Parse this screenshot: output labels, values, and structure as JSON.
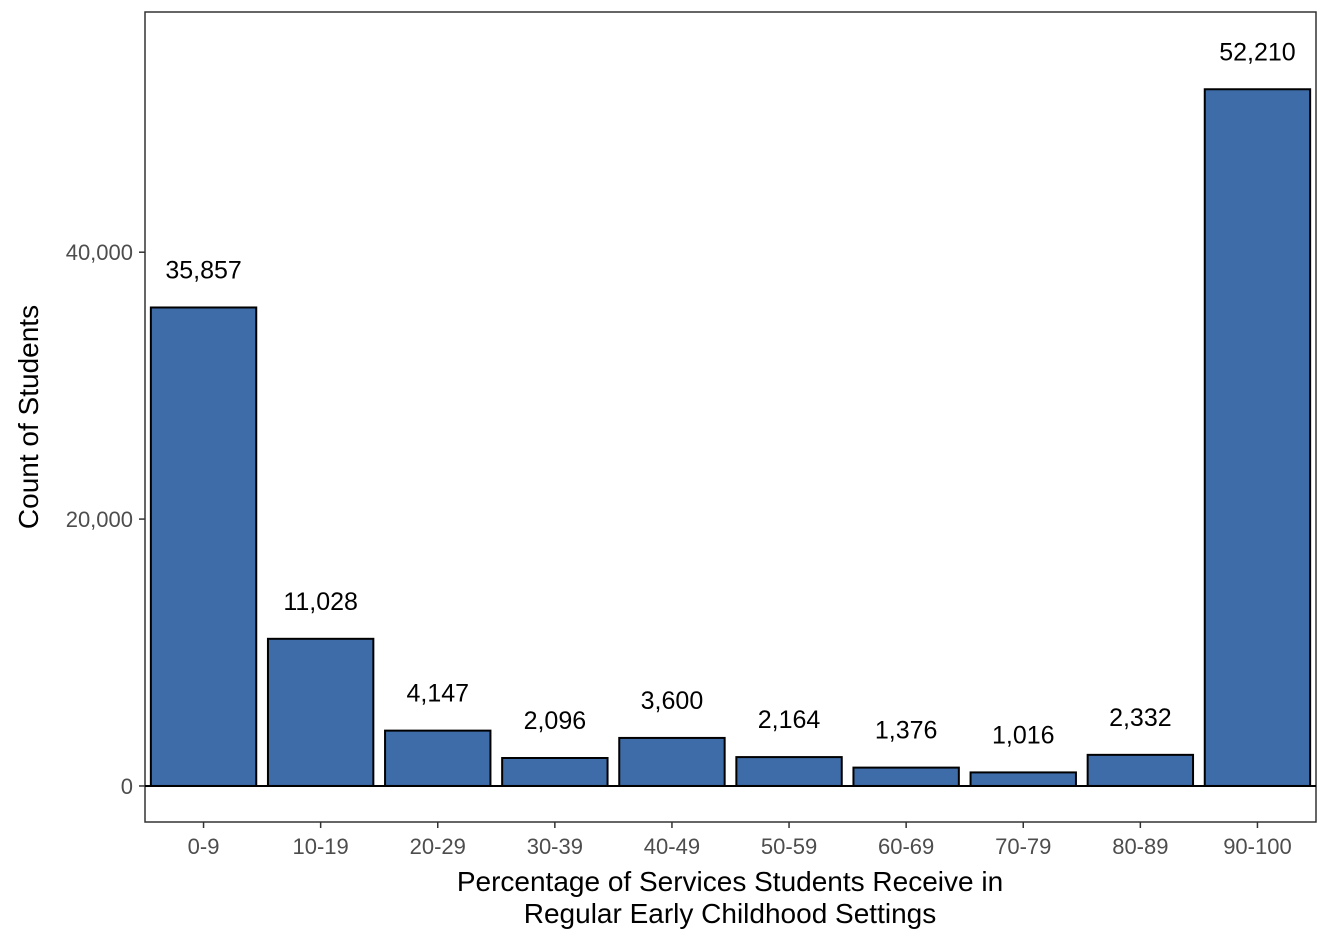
{
  "chart_data": {
    "type": "bar",
    "categories": [
      "0-9",
      "10-19",
      "20-29",
      "30-39",
      "40-49",
      "50-59",
      "60-69",
      "70-79",
      "80-89",
      "90-100"
    ],
    "values": [
      35857,
      11028,
      4147,
      2096,
      3600,
      2164,
      1376,
      1016,
      2332,
      52210
    ],
    "data_labels": [
      "35,857",
      "11,028",
      "4,147",
      "2,096",
      "3,600",
      "2,164",
      "1,376",
      "1,016",
      "2,332",
      "52,210"
    ],
    "title": "",
    "xlabel_lines": [
      "Percentage of Services Students Receive in",
      "Regular Early Childhood Settings"
    ],
    "ylabel": "Count of Students",
    "y_ticks": [
      0,
      20000,
      40000
    ],
    "y_tick_labels": [
      "0",
      "20,000",
      "40,000"
    ],
    "ylim": [
      -2700,
      58000
    ],
    "grid": false,
    "legend": "none",
    "colors": {
      "bar_fill": "#3d6ca8",
      "bar_stroke": "#000000",
      "panel_border": "#333333",
      "tick_label": "#4d4d4d"
    }
  }
}
